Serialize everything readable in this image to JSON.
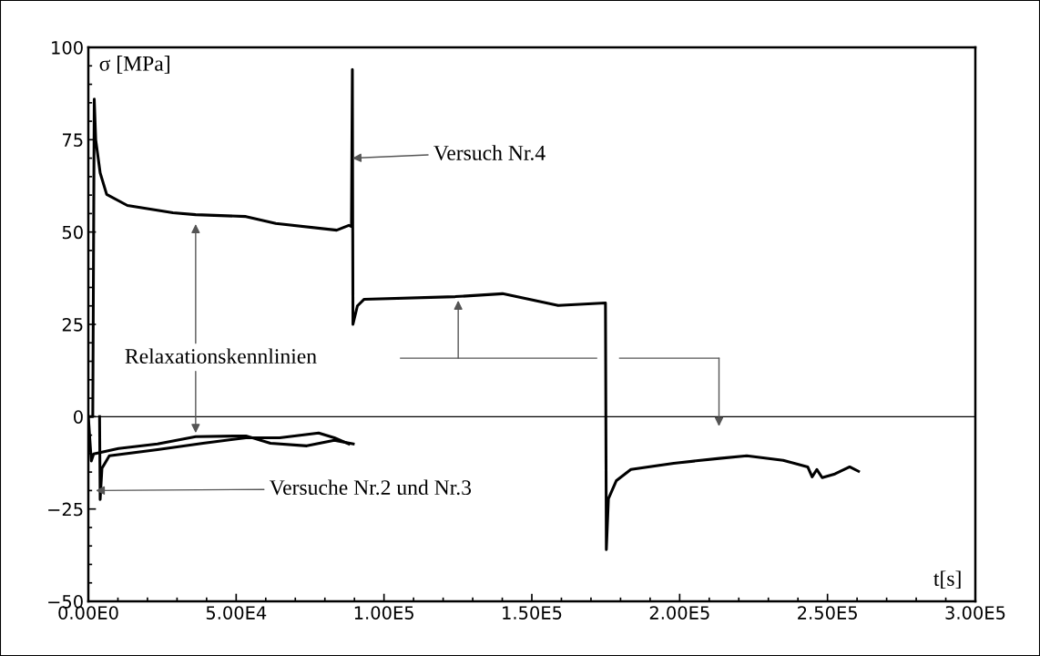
{
  "chart_data": {
    "type": "line",
    "xlabel": "t[s]",
    "ylabel": "σ [MPa]",
    "xlim": [
      0,
      300000
    ],
    "ylim": [
      -50,
      100
    ],
    "xticks": [
      {
        "value": 0,
        "label": "0.00E0"
      },
      {
        "value": 50000,
        "label": "5.00E4"
      },
      {
        "value": 100000,
        "label": "1.00E5"
      },
      {
        "value": 150000,
        "label": "1.50E5"
      },
      {
        "value": 200000,
        "label": "2.00E5"
      },
      {
        "value": 250000,
        "label": "2.50E5"
      },
      {
        "value": 300000,
        "label": "3.00E5"
      }
    ],
    "yticks": [
      -50,
      -25,
      0,
      25,
      50,
      75,
      100
    ],
    "grid": false,
    "legend": false,
    "ref_lines": [
      {
        "axis": "y",
        "value": 0,
        "color": "#000000"
      }
    ],
    "series": [
      {
        "color": "#000000",
        "x": [
          0,
          1500,
          2000,
          2500,
          4000,
          6200,
          13200,
          28600,
          36300,
          53300,
          63400,
          84000,
          88100,
          89000,
          89300,
          89500,
          91000,
          93300,
          124100,
          140100,
          158900,
          174900,
          175200,
          175900,
          178600,
          183500,
          198000,
          213400,
          222700,
          235000,
          243300,
          244800,
          246400,
          248200,
          252500,
          257500,
          260500
        ],
        "values": [
          0,
          0,
          86,
          75,
          66,
          60.2,
          57.2,
          55.2,
          54.7,
          54.2,
          52.3,
          50.5,
          51.8,
          51.5,
          94,
          25,
          30,
          31.8,
          32.5,
          33.3,
          30.1,
          30.8,
          -36,
          -22.2,
          -17.3,
          -14.3,
          -12.6,
          -11.3,
          -10.6,
          -11.8,
          -13.6,
          -16.3,
          -14.3,
          -16.5,
          -15.5,
          -13.6,
          -14.8
        ]
      },
      {
        "color": "#000000",
        "x": [
          0,
          1000,
          1800,
          10200,
          23400,
          36300,
          53300,
          61600,
          73900,
          83200,
          89600
        ],
        "values": [
          0,
          -12,
          -10.1,
          -8.6,
          -7.4,
          -5.4,
          -5.2,
          -7.2,
          -7.9,
          -6.4,
          -7.4
        ]
      },
      {
        "color": "#000000",
        "x": [
          3800,
          4000,
          4600,
          7100,
          23400,
          38800,
          53300,
          64700,
          77900,
          83200,
          88100
        ],
        "values": [
          0,
          -22.4,
          -14,
          -10.6,
          -8.9,
          -7.2,
          -5.7,
          -5.7,
          -4.4,
          -5.7,
          -7.4
        ]
      }
    ],
    "annotations": [
      {
        "text": "Versuch Nr.4",
        "x": 89300,
        "y": 70
      },
      "Relaxationskennlinien",
      {
        "text": "Versuche Nr.2 und Nr.3",
        "x": 2500,
        "y": -20
      }
    ]
  }
}
